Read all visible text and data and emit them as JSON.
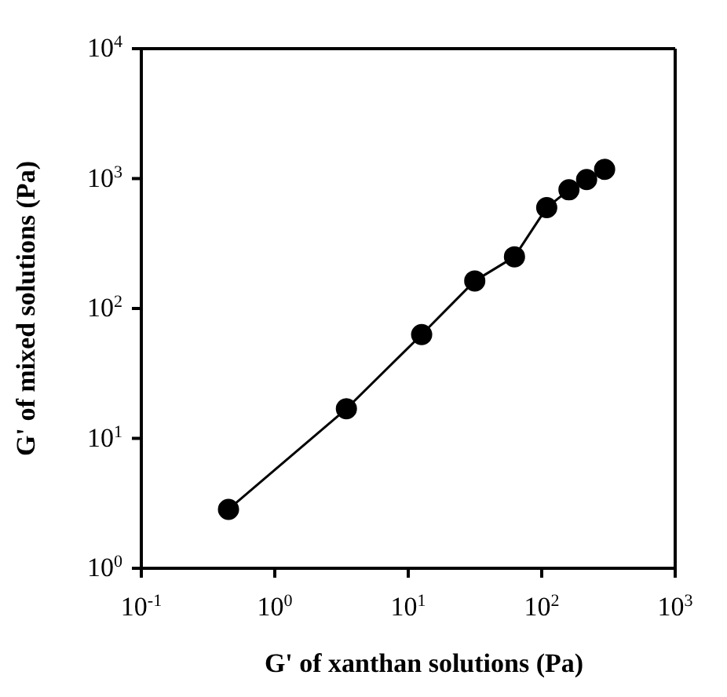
{
  "chart_data": {
    "type": "line",
    "xlabel": "G' of xanthan solutions (Pa)",
    "ylabel": "G' of mixed solutions (Pa)",
    "log": "xy",
    "marker": "circle",
    "line_style": "solid",
    "x": [
      0.45,
      3.44,
      12.6,
      31.5,
      62.5,
      109,
      160,
      217,
      296
    ],
    "series": [
      {
        "color": "#000000",
        "values": [
          2.84,
          16.9,
          63,
          163,
          250,
          597,
          819,
          982,
          1178
        ]
      }
    ],
    "xlim": [
      0.1,
      1000
    ],
    "ylim": [
      1,
      10000
    ],
    "xticks": [
      {
        "value": 0.1,
        "label": "10$^{-1}$"
      },
      {
        "value": 1,
        "label": "10$^{0}$"
      },
      {
        "value": 10,
        "label": "10$^{1}$"
      },
      {
        "value": 100,
        "label": "10$^{2}$"
      },
      {
        "value": 1000,
        "label": "10$^{3}$"
      }
    ],
    "yticks": [
      {
        "value": 1,
        "label": "10$^{0}$"
      },
      {
        "value": 10,
        "label": "10$^{1}$"
      },
      {
        "value": 100,
        "label": "10$^{2}$"
      },
      {
        "value": 1000,
        "label": "10$^{3}$"
      },
      {
        "value": 10000,
        "label": "10$^{4}$"
      }
    ]
  }
}
